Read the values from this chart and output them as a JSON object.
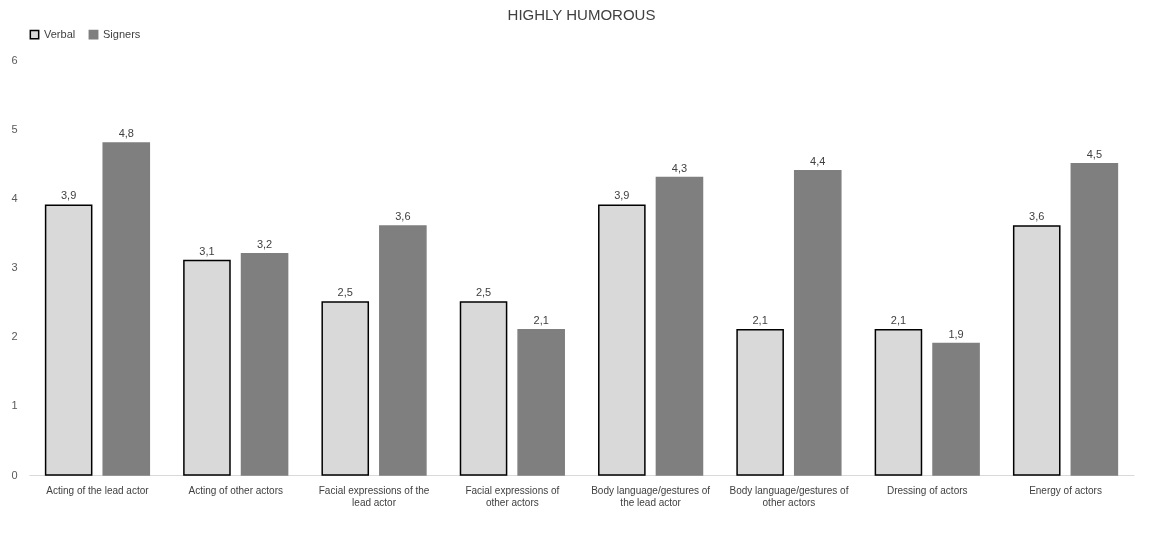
{
  "chart_data": {
    "type": "bar",
    "title": "HIGHLY HUMOROUS",
    "categories": [
      "Acting of the lead actor",
      "Acting of other actors",
      "Facial expressions of the lead actor",
      "Facial expressions of other actors",
      "Body language/gestures of the lead actor",
      "Body language/gestures of other actors",
      "Dressing of actors",
      "Energy of actors"
    ],
    "series": [
      {
        "name": "Verbal",
        "color": "#d9d9d9",
        "values": [
          3.9,
          3.1,
          2.5,
          2.5,
          3.9,
          2.1,
          2.1,
          3.6
        ],
        "value_labels": [
          "3,9",
          "3,1",
          "2,5",
          "2,5",
          "3,9",
          "2,1",
          "2,1",
          "3,6"
        ]
      },
      {
        "name": "Signers",
        "color": "#7f7f7f",
        "values": [
          4.8,
          3.2,
          3.6,
          2.1,
          4.3,
          4.4,
          1.9,
          4.5
        ],
        "value_labels": [
          "4,8",
          "3,2",
          "3,6",
          "2,1",
          "4,3",
          "4,4",
          "1,9",
          "4,5"
        ]
      }
    ],
    "ylim": [
      0,
      6
    ],
    "yticks": [
      0,
      1,
      2,
      3,
      4,
      5,
      6
    ],
    "grid": false,
    "legend": "top"
  }
}
